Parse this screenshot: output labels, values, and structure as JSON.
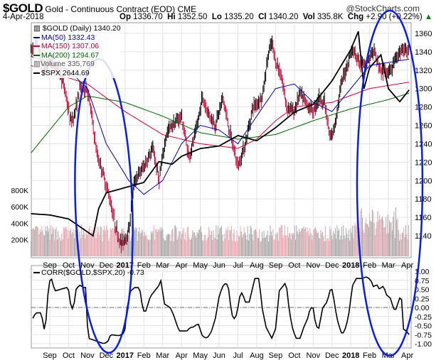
{
  "header": {
    "symbol": "$GOLD",
    "name": "Gold - Continuous Contract (EOD)",
    "exchange": "CME",
    "date": "4-Apr-2018",
    "brand": "@StockCharts.com",
    "op_label": "Op",
    "op": "1336.70",
    "hi_label": "Hi",
    "hi": "1352.50",
    "lo_label": "Lo",
    "lo": "1335.20",
    "cl_label": "Cl",
    "cl": "1340.20",
    "vol_label": "Vol",
    "vol": "335.8K",
    "chg_label": "Chg",
    "chg": "+2.90 (+0.22%)"
  },
  "legend": {
    "gold": "$GOLD (Daily) 1340.20",
    "ma50": "MA(50) 1332.43",
    "ma150": "MA(150) 1307.06",
    "ma200": "MA(200) 1294.67",
    "volume": "Volume 335,769",
    "spx": "$SPX 2644.69",
    "corr": "CORR($GOLD,$SPX,20) -0.73"
  },
  "colors": {
    "ma50": "#0000aa",
    "ma150": "#cc0033",
    "ma200": "#006600",
    "spx": "#000000",
    "up": "#000000",
    "down": "#cc0033",
    "ellipse": "#0a1ee0"
  },
  "chart_data": [
    {
      "type": "line",
      "title": "$GOLD Daily",
      "x_unit": "months since Sep 2016",
      "ylim": [
        1120,
        1370
      ],
      "y_ticks": [
        1140,
        1160,
        1180,
        1200,
        1220,
        1240,
        1260,
        1280,
        1300,
        1320,
        1340,
        1360
      ],
      "volume_ticks": [
        "200K",
        "400K",
        "600K",
        "800K"
      ],
      "x_ticks": [
        "Sep",
        "Oct",
        "Nov",
        "Dec",
        "2017",
        "Feb",
        "Mar",
        "Apr",
        "May",
        "Jun",
        "Jul",
        "Aug",
        "Sep",
        "Oct",
        "Nov",
        "Dec",
        "2018",
        "Feb",
        "Mar",
        "Apr"
      ],
      "gold": [
        [
          -1,
          1340
        ],
        [
          -0.7,
          1350
        ],
        [
          -0.3,
          1320
        ],
        [
          0,
          1330
        ],
        [
          0.5,
          1320
        ],
        [
          0.8,
          1300
        ],
        [
          1.1,
          1265
        ],
        [
          1.3,
          1270
        ],
        [
          1.6,
          1300
        ],
        [
          2,
          1300
        ],
        [
          2.2,
          1275
        ],
        [
          2.5,
          1230
        ],
        [
          2.8,
          1210
        ],
        [
          3.2,
          1180
        ],
        [
          3.5,
          1150
        ],
        [
          3.8,
          1130
        ],
        [
          4.2,
          1145
        ],
        [
          4.5,
          1200
        ],
        [
          5,
          1215
        ],
        [
          5.5,
          1235
        ],
        [
          5.8,
          1200
        ],
        [
          6.2,
          1250
        ],
        [
          6.5,
          1260
        ],
        [
          7,
          1270
        ],
        [
          7.4,
          1225
        ],
        [
          7.8,
          1255
        ],
        [
          8.1,
          1290
        ],
        [
          8.4,
          1275
        ],
        [
          8.8,
          1260
        ],
        [
          9.2,
          1290
        ],
        [
          9.6,
          1250
        ],
        [
          10,
          1215
        ],
        [
          10.4,
          1240
        ],
        [
          10.8,
          1280
        ],
        [
          11.3,
          1290
        ],
        [
          11.6,
          1335
        ],
        [
          11.8,
          1350
        ],
        [
          12,
          1330
        ],
        [
          12.3,
          1315
        ],
        [
          12.6,
          1280
        ],
        [
          13,
          1275
        ],
        [
          13.3,
          1295
        ],
        [
          13.6,
          1285
        ],
        [
          14,
          1275
        ],
        [
          14.3,
          1290
        ],
        [
          14.6,
          1285
        ],
        [
          14.9,
          1245
        ],
        [
          15.1,
          1255
        ],
        [
          15.5,
          1305
        ],
        [
          15.8,
          1325
        ],
        [
          16.1,
          1345
        ],
        [
          16.4,
          1330
        ],
        [
          16.8,
          1325
        ],
        [
          17.2,
          1340
        ],
        [
          17.6,
          1320
        ],
        [
          18,
          1315
        ],
        [
          18.4,
          1330
        ],
        [
          18.7,
          1345
        ],
        [
          19.1,
          1340
        ]
      ],
      "ma50": [
        [
          -1,
          1335
        ],
        [
          0.5,
          1325
        ],
        [
          1,
          1320
        ],
        [
          2,
          1300
        ],
        [
          3,
          1240
        ],
        [
          4.2,
          1200
        ],
        [
          5,
          1185
        ],
        [
          6,
          1200
        ],
        [
          7,
          1240
        ],
        [
          8,
          1260
        ],
        [
          9,
          1255
        ],
        [
          10,
          1240
        ],
        [
          11,
          1270
        ],
        [
          12,
          1300
        ],
        [
          13,
          1305
        ],
        [
          14,
          1285
        ],
        [
          15,
          1275
        ],
        [
          16,
          1300
        ],
        [
          17,
          1325
        ],
        [
          19.1,
          1332
        ]
      ],
      "ma150": [
        [
          -1,
          1325
        ],
        [
          2,
          1305
        ],
        [
          4,
          1275
        ],
        [
          6,
          1250
        ],
        [
          8,
          1240
        ],
        [
          10,
          1235
        ],
        [
          11,
          1245
        ],
        [
          12,
          1265
        ],
        [
          13,
          1280
        ],
        [
          15,
          1285
        ],
        [
          17,
          1300
        ],
        [
          19.1,
          1307
        ]
      ],
      "ma200": [
        [
          -1,
          1230
        ],
        [
          1,
          1280
        ],
        [
          2,
          1292
        ],
        [
          4,
          1285
        ],
        [
          6,
          1270
        ],
        [
          8,
          1252
        ],
        [
          10,
          1245
        ],
        [
          12,
          1250
        ],
        [
          14,
          1265
        ],
        [
          16,
          1278
        ],
        [
          18,
          1288
        ],
        [
          19.1,
          1295
        ]
      ],
      "spx_scale": [
        2050,
        2880
      ],
      "spx": [
        [
          -1,
          2170
        ],
        [
          0,
          2165
        ],
        [
          1,
          2150
        ],
        [
          2,
          2100
        ],
        [
          2.3,
          2085
        ],
        [
          2.6,
          2190
        ],
        [
          3,
          2250
        ],
        [
          4,
          2270
        ],
        [
          5,
          2290
        ],
        [
          5.8,
          2370
        ],
        [
          6.5,
          2360
        ],
        [
          7,
          2390
        ],
        [
          8,
          2420
        ],
        [
          9,
          2430
        ],
        [
          10,
          2470
        ],
        [
          11,
          2450
        ],
        [
          12,
          2500
        ],
        [
          13,
          2560
        ],
        [
          14,
          2590
        ],
        [
          15,
          2680
        ],
        [
          16,
          2800
        ],
        [
          16.4,
          2870
        ],
        [
          16.7,
          2650
        ],
        [
          17,
          2730
        ],
        [
          17.6,
          2780
        ],
        [
          18,
          2650
        ],
        [
          18.6,
          2600
        ],
        [
          19.1,
          2645
        ]
      ]
    },
    {
      "type": "line",
      "title": "CORR($GOLD,$SPX,20)",
      "ylim": [
        -1,
        1
      ],
      "y_ticks": [
        "1.00",
        "0.75",
        "0.50",
        "0.25",
        "0.00",
        "-0.25",
        "-0.50",
        "-0.75",
        "-1.00"
      ],
      "corr": [
        [
          -0.9,
          -0.3
        ],
        [
          -0.75,
          -0.15
        ],
        [
          -0.45,
          -0.15
        ],
        [
          -0.3,
          -0.6
        ],
        [
          -0.2,
          -0.35
        ],
        [
          -0.05,
          0.72
        ],
        [
          0.15,
          0.8
        ],
        [
          0.23,
          0.45
        ],
        [
          0.9,
          0.55
        ],
        [
          0.98,
          0.55
        ],
        [
          1.13,
          0
        ],
        [
          1.25,
          -0.05
        ],
        [
          1.4,
          0.5
        ],
        [
          1.58,
          0.62
        ],
        [
          1.8,
          0.55
        ],
        [
          1.91,
          0.55
        ],
        [
          2.03,
          -0.85
        ],
        [
          2.33,
          -0.9
        ],
        [
          2.86,
          -1
        ],
        [
          3.08,
          -0.95
        ],
        [
          3.23,
          -0.75
        ],
        [
          3.68,
          -0.78
        ],
        [
          3.98,
          -0.7
        ],
        [
          4.11,
          0
        ],
        [
          4.29,
          0.45
        ],
        [
          4.51,
          0.55
        ],
        [
          4.77,
          0.55
        ],
        [
          4.96,
          -0.1
        ],
        [
          5.11,
          -0.1
        ],
        [
          5.34,
          0.3
        ],
        [
          5.79,
          0.6
        ],
        [
          5.91,
          0.75
        ],
        [
          6.09,
          0.1
        ],
        [
          6.39,
          0
        ],
        [
          6.54,
          -0.15
        ],
        [
          6.77,
          -0.5
        ],
        [
          6.87,
          -0.65
        ],
        [
          7.29,
          -0.65
        ],
        [
          7.47,
          -0.55
        ],
        [
          7.59,
          -0.55
        ],
        [
          7.89,
          -0.45
        ],
        [
          8.12,
          -0.8
        ],
        [
          8.35,
          -0.85
        ],
        [
          8.57,
          -0.7
        ],
        [
          8.8,
          -0.3
        ],
        [
          9.02,
          0.35
        ],
        [
          9.25,
          0.65
        ],
        [
          9.47,
          0.65
        ],
        [
          9.67,
          -0.2
        ],
        [
          9.85,
          -0.35
        ],
        [
          10,
          0
        ],
        [
          10.15,
          0.45
        ],
        [
          10.3,
          0.3
        ],
        [
          10.38,
          0.15
        ],
        [
          10.6,
          0.15
        ],
        [
          10.9,
          0.8
        ],
        [
          11.13,
          0.8
        ],
        [
          11.28,
          0
        ],
        [
          11.5,
          -0.55
        ],
        [
          11.8,
          -0.85
        ],
        [
          12.03,
          -0.55
        ],
        [
          12.18,
          0.45
        ],
        [
          12.41,
          0.6
        ],
        [
          12.56,
          0.7
        ],
        [
          12.71,
          0
        ],
        [
          12.86,
          -0.5
        ],
        [
          13.08,
          -0.85
        ],
        [
          13.31,
          -0.85
        ],
        [
          13.53,
          -0.5
        ],
        [
          13.68,
          -0.35
        ],
        [
          13.83,
          -0.05
        ],
        [
          13.98,
          0.05
        ],
        [
          14.14,
          -0.5
        ],
        [
          14.29,
          -0.6
        ],
        [
          14.51,
          0
        ],
        [
          14.74,
          0.15
        ],
        [
          14.96,
          0.6
        ],
        [
          15.11,
          0.2
        ],
        [
          15.26,
          -0.3
        ],
        [
          15.49,
          -0.7
        ],
        [
          15.64,
          -0.7
        ],
        [
          15.86,
          -0.3
        ],
        [
          16.09,
          0.6
        ],
        [
          16.29,
          0.8
        ],
        [
          16.62,
          0.8
        ],
        [
          16.84,
          0.85
        ],
        [
          17.07,
          0.75
        ],
        [
          17.22,
          0.55
        ],
        [
          17.37,
          0.65
        ],
        [
          17.52,
          0.5
        ],
        [
          17.74,
          0.6
        ],
        [
          17.89,
          0.35
        ],
        [
          18.12,
          0.25
        ],
        [
          18.27,
          -0.05
        ],
        [
          18.42,
          -0.05
        ],
        [
          18.57,
          0.25
        ],
        [
          18.69,
          0.3
        ],
        [
          18.8,
          -0.6
        ],
        [
          18.95,
          -0.65
        ],
        [
          19.1,
          -0.75
        ]
      ]
    }
  ]
}
